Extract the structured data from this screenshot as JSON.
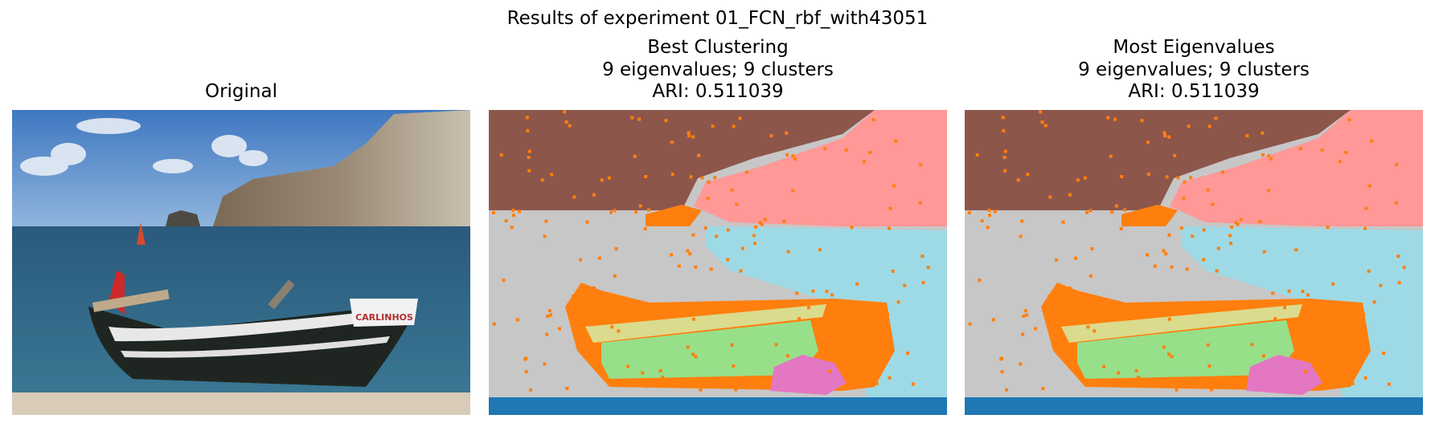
{
  "figure": {
    "suptitle": "Results of experiment 01_FCN_rbf_with43051"
  },
  "panels": [
    {
      "title_lines": [
        "Original"
      ]
    },
    {
      "title_lines": [
        "Best Clustering",
        "9 eigenvalues; 9 clusters",
        "ARI: 0.511039"
      ]
    },
    {
      "title_lines": [
        "Most Eigenvalues",
        "9 eigenvalues; 9 clusters",
        "ARI: 0.511039"
      ]
    }
  ],
  "original_photo": {
    "boat_name": "CARLINHOS"
  },
  "cluster_colors": {
    "brown": "#8c564b",
    "pink": "#ff9896",
    "orange": "#ff7f0e",
    "gray": "#c7c7c7",
    "light_blue": "#9edae5",
    "tan": "#dbdb8d",
    "light_green": "#98df8a",
    "magenta": "#e377c2",
    "blue": "#1f77b4"
  }
}
